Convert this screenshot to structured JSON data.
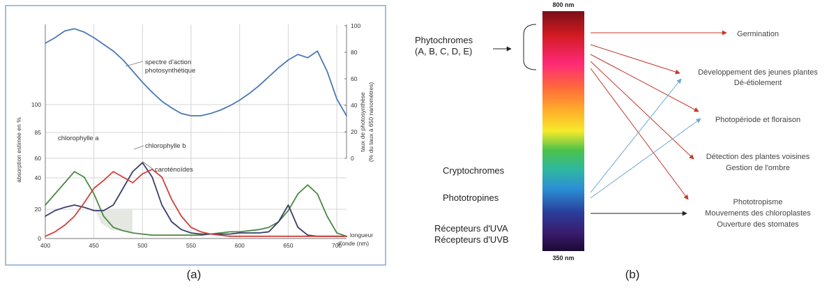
{
  "chart_data": [
    {
      "type": "line",
      "panel_caption": "(a)",
      "x": [
        400,
        410,
        420,
        430,
        440,
        450,
        460,
        470,
        480,
        490,
        500,
        510,
        520,
        530,
        540,
        550,
        560,
        570,
        580,
        590,
        600,
        610,
        620,
        630,
        640,
        650,
        660,
        670,
        680,
        690,
        700,
        710
      ],
      "xlim": [
        400,
        710
      ],
      "x_ticks": [
        400,
        450,
        500,
        550,
        600,
        650,
        700
      ],
      "xlabel": "longueur d'onde (nm)",
      "ylabel": "absorption estimée en %",
      "y_ticks_left": [
        0,
        20,
        40,
        60,
        85,
        100
      ],
      "ylabel_right": "taux de photosynthèse (% du taux à 650 nanomètres)",
      "y_ticks_right": [
        0,
        20,
        40,
        60,
        80,
        100
      ],
      "grid": true,
      "series": [
        {
          "name": "spectre d'action photosynthétique",
          "color": "#4a78b8",
          "values": [
            175,
            180,
            186,
            188,
            185,
            180,
            174,
            168,
            160,
            150,
            140,
            131,
            123,
            117,
            112,
            110,
            110,
            112,
            115,
            119,
            124,
            130,
            137,
            145,
            153,
            160,
            165,
            162,
            168,
            150,
            125,
            110
          ]
        },
        {
          "name": "chlorophylle a",
          "color": "#4a8a42",
          "values": [
            30,
            40,
            50,
            60,
            55,
            40,
            20,
            10,
            7,
            5,
            4,
            3,
            3,
            3,
            3,
            3,
            3,
            4,
            5,
            6,
            6,
            7,
            8,
            10,
            15,
            25,
            40,
            48,
            40,
            20,
            5,
            2
          ]
        },
        {
          "name": "chlorophylle b",
          "color": "#3b3c6b",
          "values": [
            20,
            25,
            28,
            30,
            28,
            25,
            25,
            30,
            45,
            60,
            68,
            55,
            30,
            15,
            8,
            5,
            4,
            4,
            4,
            4,
            5,
            5,
            5,
            6,
            15,
            30,
            10,
            3,
            2,
            2,
            2,
            2
          ]
        },
        {
          "name": "caroténoïdes",
          "color": "#d0403c",
          "values": [
            2,
            6,
            12,
            20,
            32,
            45,
            52,
            60,
            55,
            50,
            58,
            62,
            55,
            35,
            20,
            10,
            6,
            4,
            3,
            2,
            2,
            2,
            2,
            2,
            2,
            2,
            2,
            2,
            2,
            2,
            2,
            2
          ]
        }
      ]
    },
    {
      "type": "diagram",
      "panel_caption": "(b)",
      "spectrum_top_label": "800 nm",
      "spectrum_bottom_label": "350 nm",
      "receptors": [
        {
          "lines": [
            "Phytochromes",
            "(A, B, C, D, E)"
          ]
        },
        {
          "lines": [
            "Cryptochromes"
          ]
        },
        {
          "lines": [
            "Phototropines"
          ]
        },
        {
          "lines": [
            "Récepteurs d'UVA",
            "Récepteurs d'UVB"
          ]
        }
      ],
      "responses": [
        {
          "lines": [
            "Germination"
          ]
        },
        {
          "lines": [
            "Développement des jeunes plantes",
            "Dé-étiolement"
          ]
        },
        {
          "lines": [
            "Photopériode et floraison"
          ]
        },
        {
          "lines": [
            "Détection des plantes voisines",
            "Gestion de l'ombre"
          ]
        },
        {
          "lines": [
            "Phototropisme",
            "Mouvements des chloroplastes",
            "Ouverture des stomates"
          ]
        }
      ],
      "colors": {
        "red_arrow": "#c0392b",
        "blue_arrow": "#6fa8d0",
        "black_arrow": "#222222"
      }
    }
  ]
}
